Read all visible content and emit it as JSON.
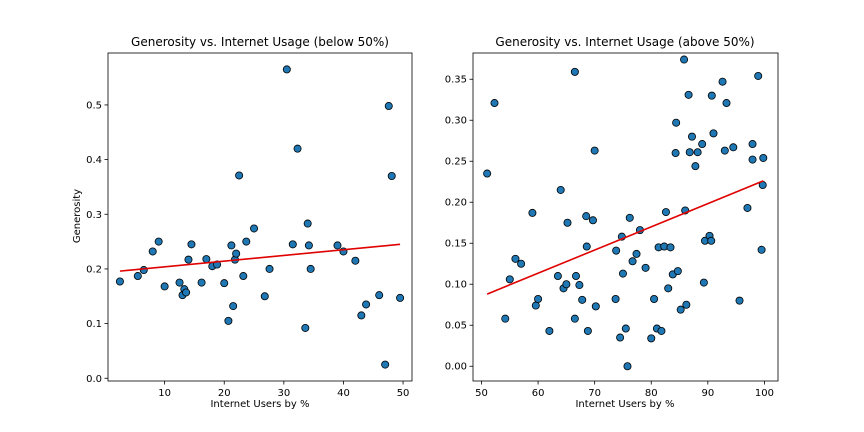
{
  "chart_data": [
    {
      "type": "scatter",
      "title": "Generosity vs. Internet Usage (below 50%)",
      "xlabel": "Internet Users by %",
      "ylabel": "Generosity",
      "xlim": [
        0.5,
        51.5
      ],
      "ylim": [
        -0.005,
        0.595
      ],
      "xticks": [
        "10",
        "20",
        "30",
        "40",
        "50"
      ],
      "yticks": [
        "0.0",
        "0.1",
        "0.2",
        "0.3",
        "0.4",
        "0.5"
      ],
      "grid": false,
      "trendline": {
        "color": "#e00000",
        "x": [
          2.5,
          49.5
        ],
        "y": [
          0.196,
          0.245
        ]
      },
      "points": [
        [
          2.5,
          0.177
        ],
        [
          5.5,
          0.187
        ],
        [
          6.5,
          0.198
        ],
        [
          8,
          0.232
        ],
        [
          9,
          0.25
        ],
        [
          10,
          0.168
        ],
        [
          12.5,
          0.175
        ],
        [
          13,
          0.152
        ],
        [
          13.3,
          0.163
        ],
        [
          13.6,
          0.157
        ],
        [
          14,
          0.217
        ],
        [
          14.5,
          0.245
        ],
        [
          16.2,
          0.175
        ],
        [
          17,
          0.218
        ],
        [
          18,
          0.205
        ],
        [
          18.8,
          0.208
        ],
        [
          20,
          0.174
        ],
        [
          20.7,
          0.105
        ],
        [
          21.2,
          0.243
        ],
        [
          21.5,
          0.132
        ],
        [
          21.8,
          0.217
        ],
        [
          22,
          0.228
        ],
        [
          22.5,
          0.371
        ],
        [
          23.2,
          0.187
        ],
        [
          23.7,
          0.25
        ],
        [
          25,
          0.274
        ],
        [
          26.8,
          0.15
        ],
        [
          27.6,
          0.2
        ],
        [
          30.5,
          0.565
        ],
        [
          31.5,
          0.245
        ],
        [
          32.3,
          0.42
        ],
        [
          33.6,
          0.092
        ],
        [
          34,
          0.283
        ],
        [
          34.2,
          0.243
        ],
        [
          34.5,
          0.2
        ],
        [
          39,
          0.243
        ],
        [
          40,
          0.232
        ],
        [
          42,
          0.215
        ],
        [
          43,
          0.115
        ],
        [
          43.8,
          0.135
        ],
        [
          46,
          0.152
        ],
        [
          47,
          0.025
        ],
        [
          47.6,
          0.498
        ],
        [
          48.1,
          0.37
        ],
        [
          49.5,
          0.147
        ]
      ]
    },
    {
      "type": "scatter",
      "title": "Generosity vs. Internet Usage (above 50%)",
      "xlabel": "Internet Users by %",
      "ylabel": "",
      "xlim": [
        48.5,
        102.4
      ],
      "ylim": [
        -0.018,
        0.382
      ],
      "xticks": [
        "50",
        "60",
        "70",
        "80",
        "90",
        "100"
      ],
      "yticks": [
        "0.00",
        "0.05",
        "0.10",
        "0.15",
        "0.20",
        "0.25",
        "0.30",
        "0.35"
      ],
      "grid": false,
      "trendline": {
        "color": "#e00000",
        "x": [
          51,
          99.8
        ],
        "y": [
          0.088,
          0.226
        ]
      },
      "points": [
        [
          51,
          0.235
        ],
        [
          52.3,
          0.321
        ],
        [
          54.2,
          0.058
        ],
        [
          55,
          0.106
        ],
        [
          56,
          0.131
        ],
        [
          57,
          0.125
        ],
        [
          59,
          0.187
        ],
        [
          59.6,
          0.074
        ],
        [
          60,
          0.082
        ],
        [
          62,
          0.043
        ],
        [
          63.5,
          0.11
        ],
        [
          64,
          0.215
        ],
        [
          64.5,
          0.095
        ],
        [
          65,
          0.1
        ],
        [
          65.2,
          0.175
        ],
        [
          66.5,
          0.359
        ],
        [
          66.5,
          0.058
        ],
        [
          66.7,
          0.11
        ],
        [
          67.3,
          0.099
        ],
        [
          67.8,
          0.081
        ],
        [
          68.5,
          0.183
        ],
        [
          68.6,
          0.146
        ],
        [
          68.8,
          0.043
        ],
        [
          69.7,
          0.178
        ],
        [
          70,
          0.263
        ],
        [
          70.2,
          0.073
        ],
        [
          73.7,
          0.082
        ],
        [
          73.8,
          0.141
        ],
        [
          74.5,
          0.035
        ],
        [
          74.8,
          0.158
        ],
        [
          75,
          0.113
        ],
        [
          75.5,
          0.046
        ],
        [
          75.8,
          0.0
        ],
        [
          76.2,
          0.181
        ],
        [
          76.7,
          0.128
        ],
        [
          77.4,
          0.137
        ],
        [
          78,
          0.166
        ],
        [
          79,
          0.12
        ],
        [
          80,
          0.034
        ],
        [
          80.5,
          0.082
        ],
        [
          81,
          0.046
        ],
        [
          81.3,
          0.145
        ],
        [
          81.8,
          0.043
        ],
        [
          82.3,
          0.146
        ],
        [
          82.6,
          0.188
        ],
        [
          83,
          0.095
        ],
        [
          83.4,
          0.145
        ],
        [
          83.8,
          0.112
        ],
        [
          84.3,
          0.26
        ],
        [
          84.4,
          0.297
        ],
        [
          84.7,
          0.116
        ],
        [
          85.2,
          0.069
        ],
        [
          85.8,
          0.374
        ],
        [
          86,
          0.19
        ],
        [
          86.2,
          0.075
        ],
        [
          86.6,
          0.331
        ],
        [
          86.8,
          0.261
        ],
        [
          87.2,
          0.28
        ],
        [
          87.8,
          0.244
        ],
        [
          88.2,
          0.261
        ],
        [
          89,
          0.271
        ],
        [
          89.3,
          0.102
        ],
        [
          89.5,
          0.153
        ],
        [
          90.3,
          0.159
        ],
        [
          90.6,
          0.153
        ],
        [
          90.7,
          0.33
        ],
        [
          91,
          0.284
        ],
        [
          92.6,
          0.347
        ],
        [
          93,
          0.263
        ],
        [
          93.3,
          0.321
        ],
        [
          94.5,
          0.267
        ],
        [
          95.6,
          0.08
        ],
        [
          97,
          0.193
        ],
        [
          97.9,
          0.271
        ],
        [
          97.9,
          0.252
        ],
        [
          98.9,
          0.354
        ],
        [
          99.5,
          0.142
        ],
        [
          99.7,
          0.221
        ],
        [
          99.8,
          0.254
        ]
      ]
    }
  ]
}
